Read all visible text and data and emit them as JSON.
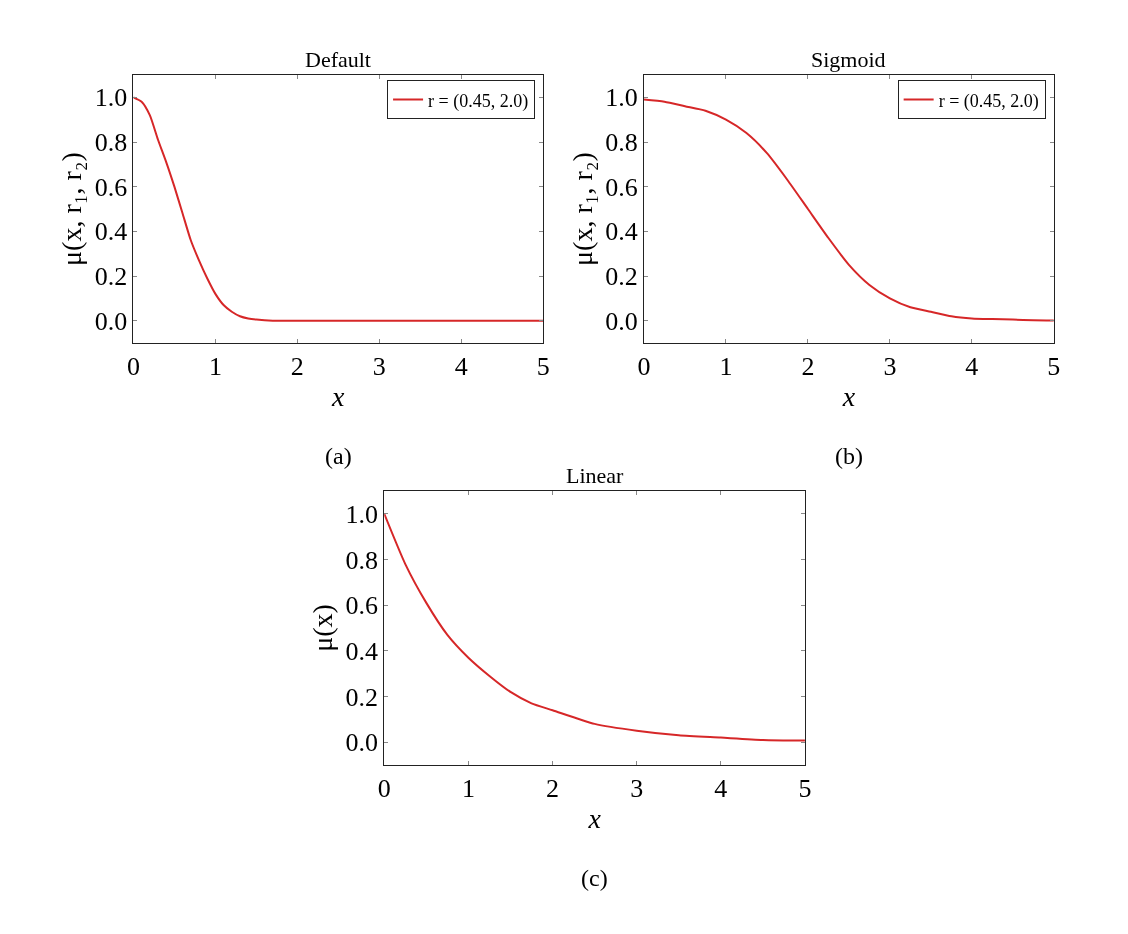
{
  "chart_data": [
    {
      "type": "line",
      "title": "Default",
      "xlabel": "x",
      "ylabel": "μ(x, r₁, r₂)",
      "xlim": [
        0,
        5
      ],
      "ylim": [
        -0.1,
        1.1
      ],
      "xticks": [
        0,
        1,
        2,
        3,
        4,
        5
      ],
      "yticks": [
        {
          "value": 0,
          "label": "0.0"
        },
        {
          "value": 0.2,
          "label": "0.2"
        },
        {
          "value": 0.4,
          "label": "0.4"
        },
        {
          "value": 0.6,
          "label": "0.6"
        },
        {
          "value": 0.8,
          "label": "0.8"
        },
        {
          "value": 1,
          "label": "1.0"
        }
      ],
      "legend": "top right",
      "annotations": [
        "(a)"
      ],
      "x": [
        0,
        0.1,
        0.2,
        0.3,
        0.4,
        0.5,
        0.6,
        0.7,
        0.8,
        0.9,
        1.0,
        1.1,
        1.2,
        1.3,
        1.4,
        1.5,
        1.7,
        2,
        3,
        4,
        5
      ],
      "series": [
        {
          "name": "r = (0.45, 2.0)",
          "color": "#d62728",
          "values": [
            1.0,
            0.98,
            0.92,
            0.81,
            0.71,
            0.6,
            0.48,
            0.36,
            0.27,
            0.19,
            0.12,
            0.07,
            0.04,
            0.02,
            0.01,
            0.005,
            0,
            0,
            0,
            0,
            0
          ]
        }
      ]
    },
    {
      "type": "line",
      "title": "Sigmoid",
      "xlabel": "x",
      "ylabel": "μ(x, r₁, r₂)",
      "xlim": [
        0,
        5
      ],
      "ylim": [
        -0.1,
        1.1
      ],
      "xticks": [
        0,
        1,
        2,
        3,
        4,
        5
      ],
      "yticks": [
        {
          "value": 0,
          "label": "0.0"
        },
        {
          "value": 0.2,
          "label": "0.2"
        },
        {
          "value": 0.4,
          "label": "0.4"
        },
        {
          "value": 0.6,
          "label": "0.6"
        },
        {
          "value": 0.8,
          "label": "0.8"
        },
        {
          "value": 1,
          "label": "1.0"
        }
      ],
      "legend": "top right",
      "annotations": [
        "(b)"
      ],
      "x": [
        0,
        0.25,
        0.5,
        0.75,
        1,
        1.25,
        1.5,
        1.75,
        2,
        2.25,
        2.5,
        2.75,
        3,
        3.25,
        3.5,
        3.75,
        4,
        4.25,
        4.5,
        4.75,
        5
      ],
      "series": [
        {
          "name": "r = (0.45, 2.0)",
          "color": "#d62728",
          "values": [
            0.99,
            0.98,
            0.96,
            0.94,
            0.9,
            0.84,
            0.75,
            0.63,
            0.5,
            0.37,
            0.25,
            0.16,
            0.1,
            0.06,
            0.04,
            0.02,
            0.01,
            0.007,
            0.005,
            0.002,
            0.001
          ]
        }
      ]
    },
    {
      "type": "line",
      "title": "Linear",
      "xlabel": "x",
      "ylabel": "μ(x)",
      "xlim": [
        0,
        5
      ],
      "ylim": [
        -0.1,
        1.1
      ],
      "xticks": [
        0,
        1,
        2,
        3,
        4,
        5
      ],
      "yticks": [
        {
          "value": 0,
          "label": "0.0"
        },
        {
          "value": 0.2,
          "label": "0.2"
        },
        {
          "value": 0.4,
          "label": "0.4"
        },
        {
          "value": 0.6,
          "label": "0.6"
        },
        {
          "value": 0.8,
          "label": "0.8"
        },
        {
          "value": 1,
          "label": "1.0"
        }
      ],
      "annotations": [
        "(c)"
      ],
      "x": [
        0,
        0.25,
        0.5,
        0.75,
        1,
        1.25,
        1.5,
        1.75,
        2,
        2.5,
        3,
        3.5,
        4,
        4.5,
        5
      ],
      "series": [
        {
          "color": "#d62728",
          "values": [
            1.0,
            0.78,
            0.61,
            0.47,
            0.37,
            0.29,
            0.22,
            0.17,
            0.14,
            0.08,
            0.05,
            0.03,
            0.02,
            0.01,
            0.007
          ]
        }
      ]
    }
  ]
}
